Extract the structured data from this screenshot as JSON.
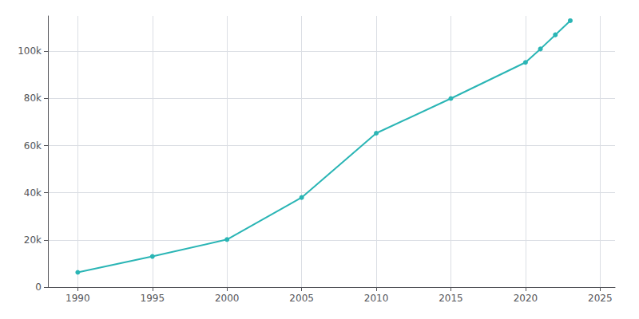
{
  "chart_data": {
    "type": "line",
    "x": [
      1990,
      1995,
      2000,
      2005,
      2010,
      2015,
      2020,
      2021,
      2022,
      2023
    ],
    "values": [
      6258,
      13000,
      20179,
      38000,
      65275,
      80000,
      95294,
      101000,
      107000,
      113000
    ],
    "color": "#2ab5b5",
    "marker": "circle",
    "xlim": [
      1988,
      2026
    ],
    "ylim": [
      0,
      115000
    ],
    "xticks": [
      1990,
      1995,
      2000,
      2005,
      2010,
      2015,
      2020,
      2025
    ],
    "yticks": [
      0,
      {
        "value": 20000,
        "label": "20k"
      },
      {
        "value": 40000,
        "label": "40k"
      },
      {
        "value": 60000,
        "label": "60k"
      },
      {
        "value": 80000,
        "label": "80k"
      },
      {
        "value": 100000,
        "label": "100k"
      }
    ],
    "grid": true
  }
}
